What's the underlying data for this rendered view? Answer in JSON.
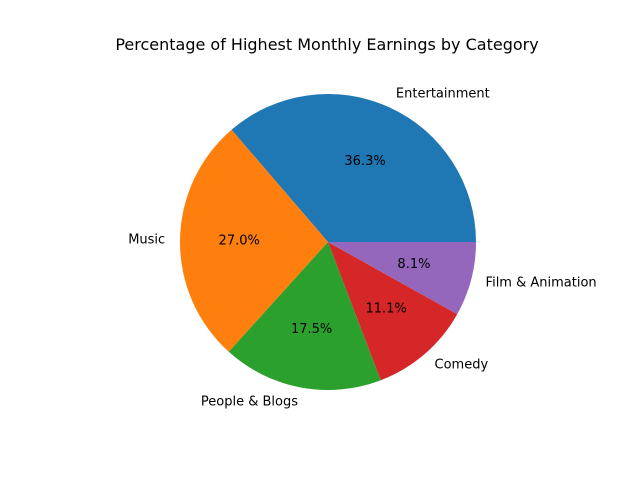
{
  "chart_data": {
    "type": "pie",
    "title": "Percentage of Highest Monthly Earnings by Category",
    "labels": [
      "Entertainment",
      "Music",
      "People & Blogs",
      "Comedy",
      "Film & Animation"
    ],
    "values": [
      36.3,
      27.0,
      17.5,
      11.1,
      8.1
    ],
    "percent_labels": [
      "36.3%",
      "27.0%",
      "17.5%",
      "11.1%",
      "8.1%"
    ],
    "colors": [
      "#1f77b4",
      "#ff7f0e",
      "#2ca02c",
      "#d62728",
      "#9467bd"
    ],
    "start_angle_deg": 0,
    "direction": "counterclockwise",
    "legend": "none"
  }
}
